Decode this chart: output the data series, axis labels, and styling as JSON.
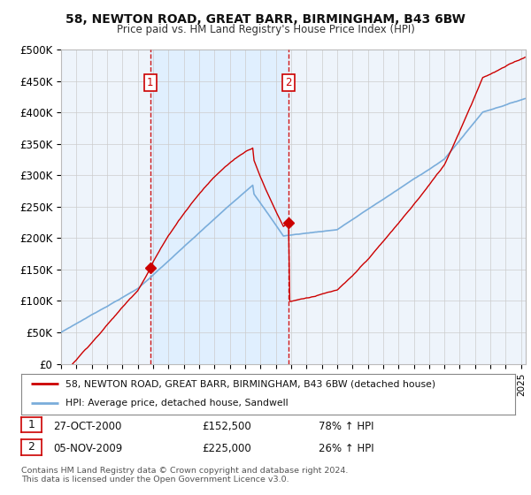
{
  "title1": "58, NEWTON ROAD, GREAT BARR, BIRMINGHAM, B43 6BW",
  "title2": "Price paid vs. HM Land Registry's House Price Index (HPI)",
  "legend_line1": "58, NEWTON ROAD, GREAT BARR, BIRMINGHAM, B43 6BW (detached house)",
  "legend_line2": "HPI: Average price, detached house, Sandwell",
  "table_row1": [
    "1",
    "27-OCT-2000",
    "£152,500",
    "78% ↑ HPI"
  ],
  "table_row2": [
    "2",
    "05-NOV-2009",
    "£225,000",
    "26% ↑ HPI"
  ],
  "footnote": "Contains HM Land Registry data © Crown copyright and database right 2024.\nThis data is licensed under the Open Government Licence v3.0.",
  "red_color": "#cc0000",
  "blue_color": "#7aaddb",
  "shade_color": "#ddeeff",
  "vline_color": "#cc0000",
  "background_color": "#eef4fb",
  "ylim": [
    0,
    500000
  ],
  "yticks": [
    0,
    50000,
    100000,
    150000,
    200000,
    250000,
    300000,
    350000,
    400000,
    450000,
    500000
  ],
  "ytick_labels": [
    "£0",
    "£50K",
    "£100K",
    "£150K",
    "£200K",
    "£250K",
    "£300K",
    "£350K",
    "£400K",
    "£450K",
    "£500K"
  ],
  "sale1_year": 2000.82,
  "sale1_price": 152500,
  "sale2_year": 2009.84,
  "sale2_price": 225000,
  "vline1_year": 2000.82,
  "vline2_year": 2009.84,
  "xmin": 1995.0,
  "xmax": 2025.3
}
